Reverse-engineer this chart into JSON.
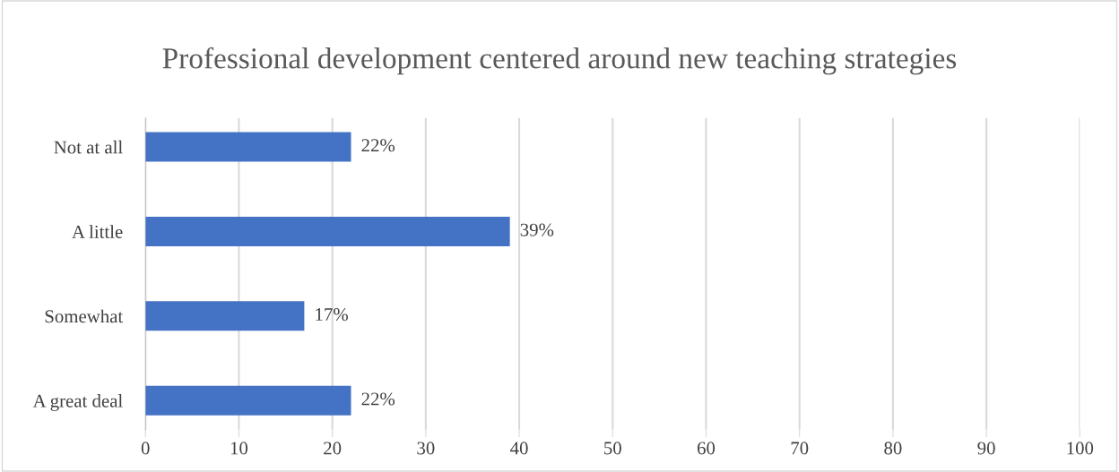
{
  "chart_data": {
    "type": "bar",
    "orientation": "horizontal",
    "title": "Professional development centered around new teaching strategies",
    "categories": [
      "Not at all",
      "A little",
      "Somewhat",
      "A great deal"
    ],
    "values": [
      22,
      39,
      17,
      22
    ],
    "value_labels": [
      "22%",
      "39%",
      "17%",
      "22%"
    ],
    "color": "#4472c4",
    "xlim": [
      0,
      100
    ],
    "xticks": [
      0,
      10,
      20,
      30,
      40,
      50,
      60,
      70,
      80,
      90,
      100
    ],
    "grid": "x",
    "legend": false
  }
}
